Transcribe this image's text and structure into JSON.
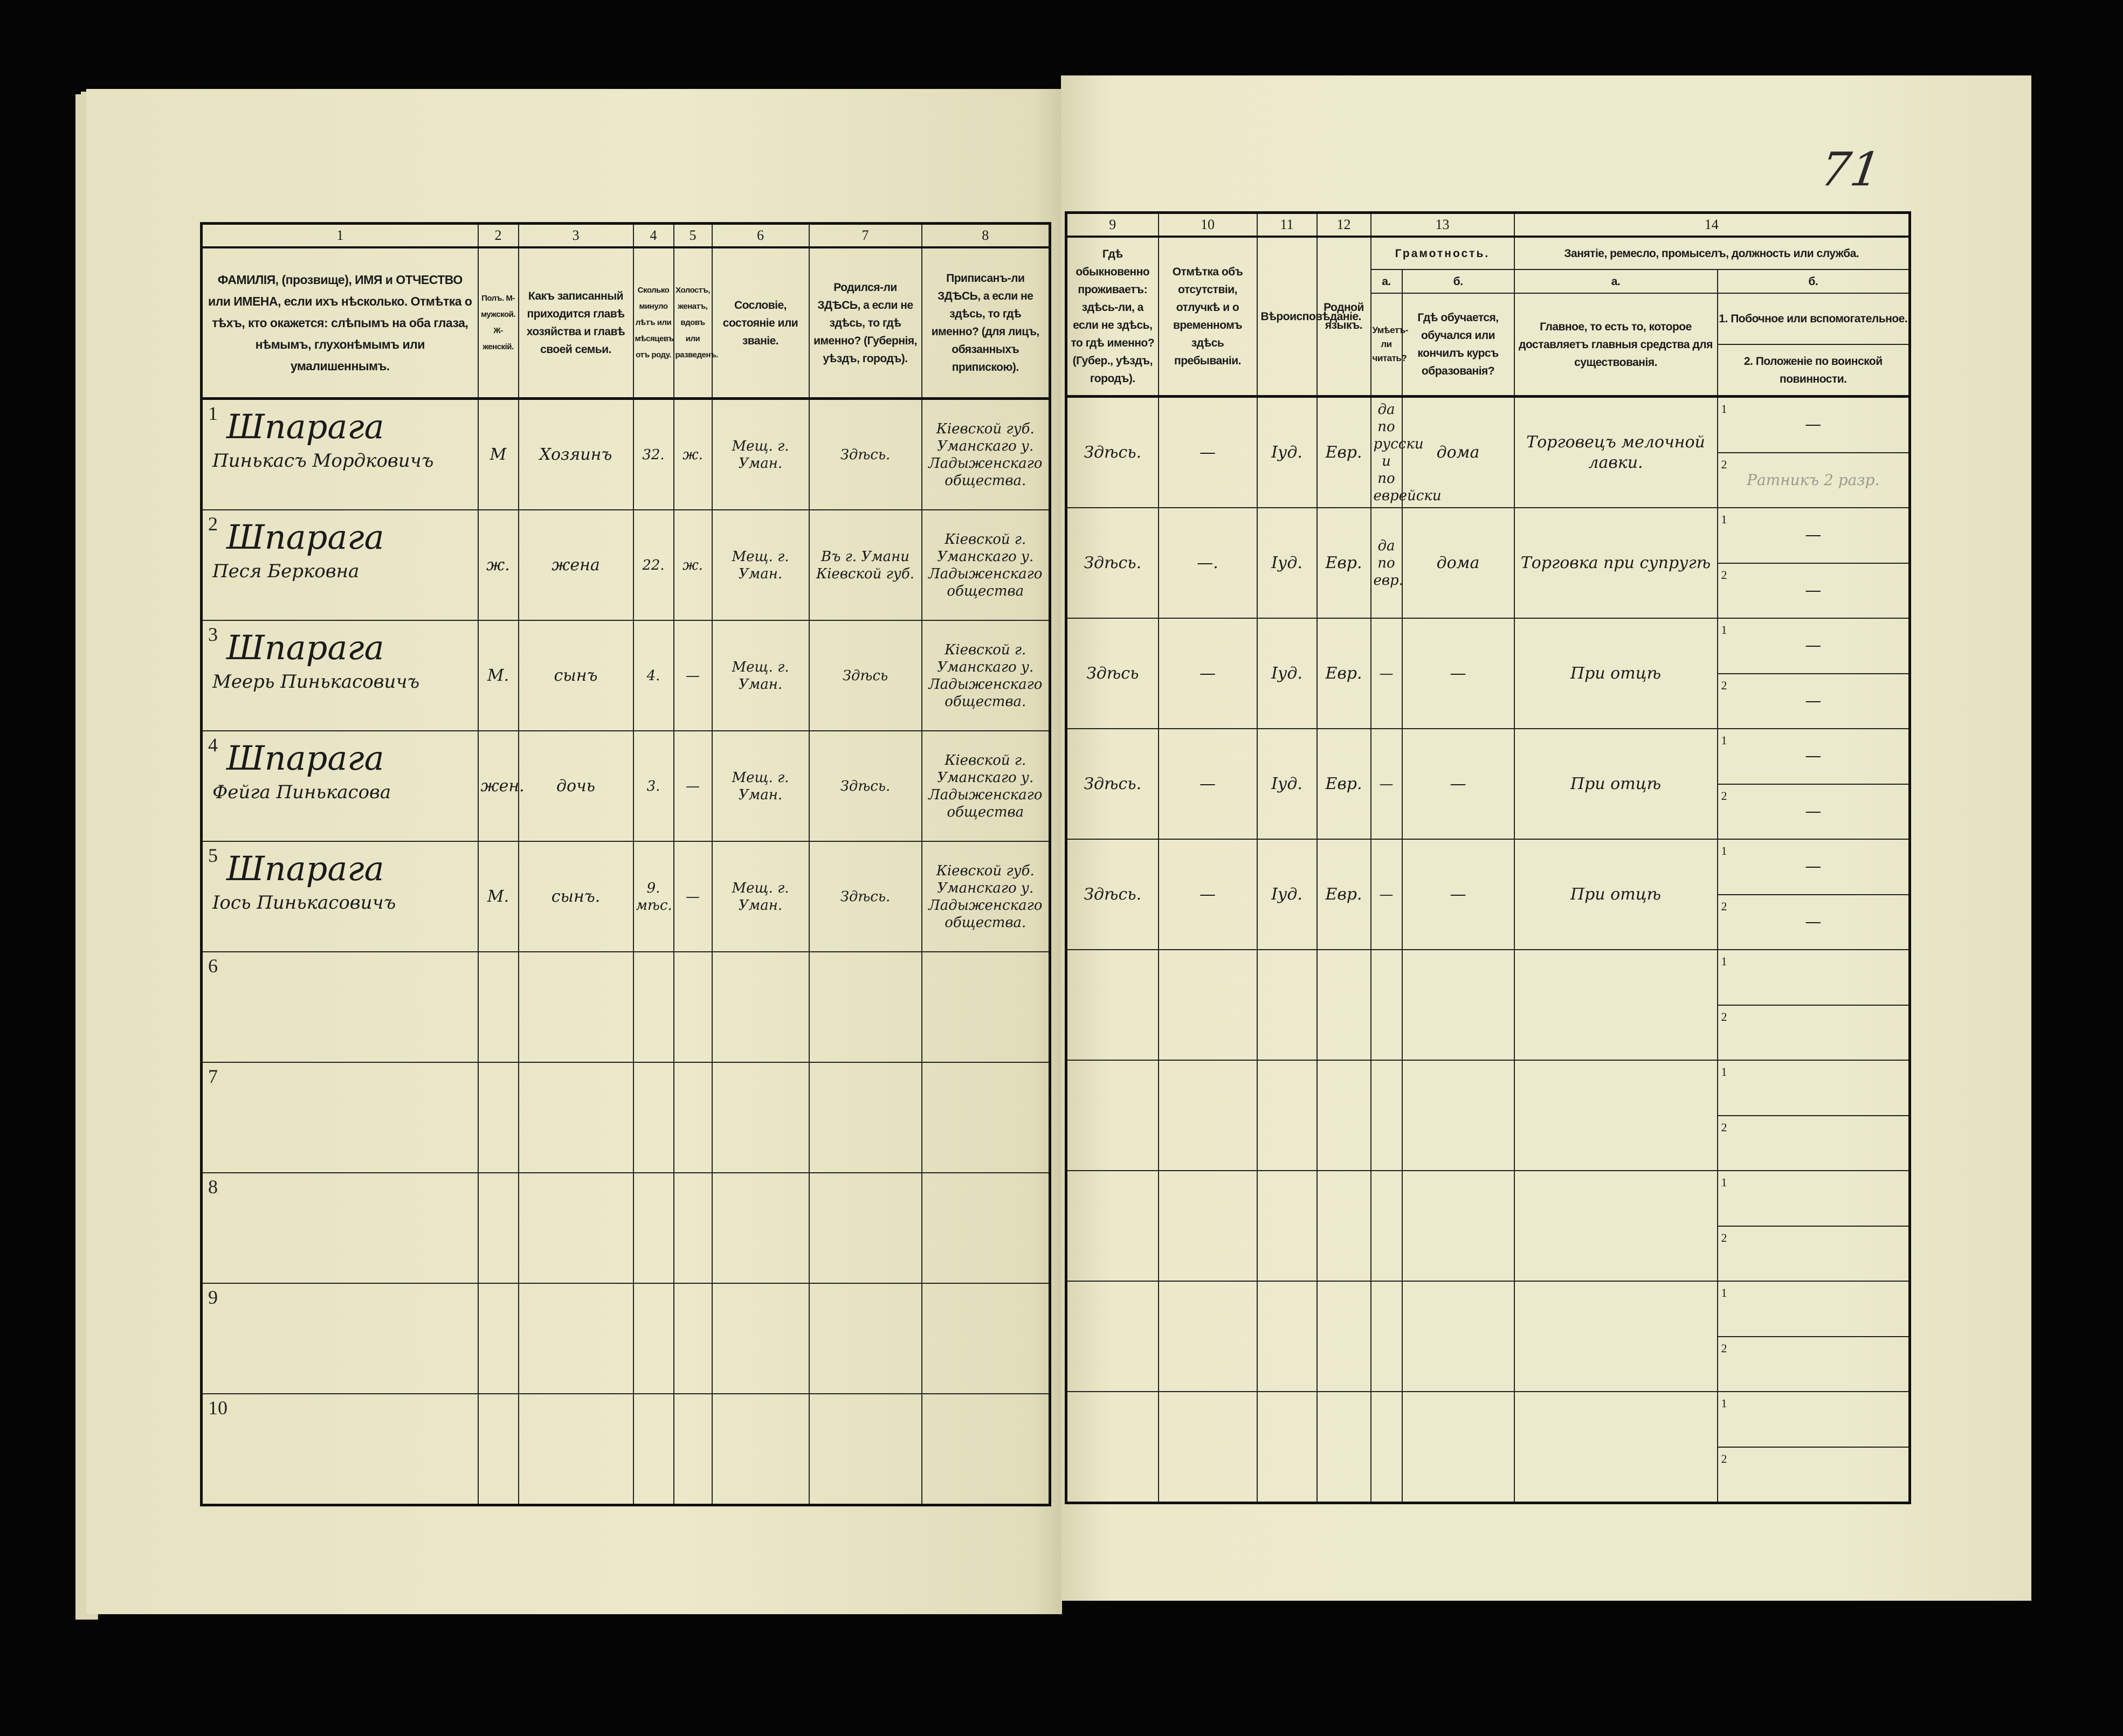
{
  "page_number": "71",
  "header": {
    "left_columns": [
      {
        "num": "1",
        "text": "ФАМИЛІЯ, (прозвище), ИМЯ и ОТЧЕСТВО или ИМЕНА, если ихъ нѣсколько. Отмѣтка о тѣхъ, кто окажется: слѣпымъ на оба глаза, нѣмымъ, глухонѣмымъ или умалишеннымъ."
      },
      {
        "num": "2",
        "text": "Полъ. М-мужской. Ж-женскій."
      },
      {
        "num": "3",
        "text": "Какъ записанный приходится главѣ хозяйства и главѣ своей семьи."
      },
      {
        "num": "4",
        "text": "Сколько минуло лѣтъ или мѣсяцевъ отъ роду."
      },
      {
        "num": "5",
        "text": "Холостъ, женатъ, вдовъ или разведенъ."
      },
      {
        "num": "6",
        "text": "Сословіе, состояніе или званіе."
      },
      {
        "num": "7",
        "text": "Родился-ли ЗДѢСЬ, а если не здѣсь, то гдѣ именно? (Губернія, уѣздъ, городъ)."
      },
      {
        "num": "8",
        "text": "Приписанъ-ли ЗДѢСЬ, а если не здѣсь, то гдѣ именно? (для лицъ, обязанныхъ припискою)."
      }
    ],
    "right_columns": [
      {
        "num": "9",
        "text": "Гдѣ обыкновенно проживаетъ: здѣсь-ли, а если не здѣсь, то гдѣ именно? (Губер., уѣздъ, городъ)."
      },
      {
        "num": "10",
        "text": "Отмѣтка объ отсутствіи, отлучкѣ и о временномъ здѣсь пребываніи."
      },
      {
        "num": "11",
        "text": "Вѣроисповѣданіе."
      },
      {
        "num": "12",
        "text": "Родной языкъ."
      }
    ],
    "literacy": {
      "num": "13",
      "title": "Грамотность.",
      "a_label": "а.",
      "a_text": "Умѣетъ-ли читать?",
      "b_label": "б.",
      "b_text": "Гдѣ обучается, обучался или кончилъ курсъ образованія?"
    },
    "occupation": {
      "num": "14",
      "title": "Занятіе, ремесло, промыселъ, должность или служба.",
      "a_label": "а.",
      "a_text": "Главное, то есть то, которое доставляетъ главныя средства для существованія.",
      "b_label": "б.",
      "b_text_1": "1. Побочное или вспомогательное.",
      "b_text_2": "2. Положеніе по воинской повинности."
    }
  },
  "sub_index": [
    "1",
    "2"
  ],
  "rows": [
    {
      "num": "1",
      "surname": "Шпарага",
      "given": "Пинькасъ Мордковичъ",
      "sex": "М",
      "relation": "Хозяинъ",
      "age": "32.",
      "marital": "ж.",
      "estate": "Мещ. г. Уман.",
      "birthplace": "Здѣсь.",
      "registered": "Кіевской губ. Уманскаго у. Ладыженскаго общества.",
      "residence": "Здѣсь.",
      "absence": "—",
      "religion": "Іуд.",
      "language": "Евр.",
      "reads": "да по русски и по еврейски",
      "schooling": "дома",
      "occupation_main": "Торговецъ мелочной лавки.",
      "occupation_side": "—",
      "military": "Ратникъ 2 разр."
    },
    {
      "num": "2",
      "surname": "Шпарага",
      "given": "Песя Берковна",
      "sex": "ж.",
      "relation": "жена",
      "age": "22.",
      "marital": "ж.",
      "estate": "Мещ. г. Уман.",
      "birthplace": "Въ г. Умани Кіевской губ.",
      "registered": "Кіевской г. Уманскаго у. Ладыженскаго общества",
      "residence": "Здѣсь.",
      "absence": "—.",
      "religion": "Іуд.",
      "language": "Евр.",
      "reads": "да по евр.",
      "schooling": "дома",
      "occupation_main": "Торговка при супругѣ",
      "occupation_side": "—",
      "military": "—"
    },
    {
      "num": "3",
      "surname": "Шпарага",
      "given": "Меерь Пинькасовичъ",
      "sex": "М.",
      "relation": "сынъ",
      "age": "4.",
      "marital": "—",
      "estate": "Мещ. г. Уман.",
      "birthplace": "Здѣсь",
      "registered": "Кіевской г. Уманскаго у. Ладыженскаго общества.",
      "residence": "Здѣсь",
      "absence": "—",
      "religion": "Іуд.",
      "language": "Евр.",
      "reads": "—",
      "schooling": "—",
      "occupation_main": "При отцѣ",
      "occupation_side": "—",
      "military": "—"
    },
    {
      "num": "4",
      "surname": "Шпарага",
      "given": "Фейга Пинькасова",
      "sex": "жен.",
      "relation": "дочь",
      "age": "3.",
      "marital": "—",
      "estate": "Мещ. г. Уман.",
      "birthplace": "Здѣсь.",
      "registered": "Кіевской г. Уманскаго у. Ладыженскаго общества",
      "residence": "Здѣсь.",
      "absence": "—",
      "religion": "Іуд.",
      "language": "Евр.",
      "reads": "—",
      "schooling": "—",
      "occupation_main": "При отцѣ",
      "occupation_side": "—",
      "military": "—"
    },
    {
      "num": "5",
      "surname": "Шпарага",
      "given": "Іось Пинькасовичъ",
      "sex": "М.",
      "relation": "сынъ.",
      "age": "9. мѣс.",
      "marital": "—",
      "estate": "Мещ. г. Уман.",
      "birthplace": "Здѣсь.",
      "registered": "Кіевской губ. Уманскаго у. Ладыженскаго общества.",
      "residence": "Здѣсь.",
      "absence": "—",
      "religion": "Іуд.",
      "language": "Евр.",
      "reads": "—",
      "schooling": "—",
      "occupation_main": "При отцѣ",
      "occupation_side": "—",
      "military": "—"
    },
    {
      "num": "6"
    },
    {
      "num": "7"
    },
    {
      "num": "8"
    },
    {
      "num": "9"
    },
    {
      "num": "10"
    }
  ]
}
